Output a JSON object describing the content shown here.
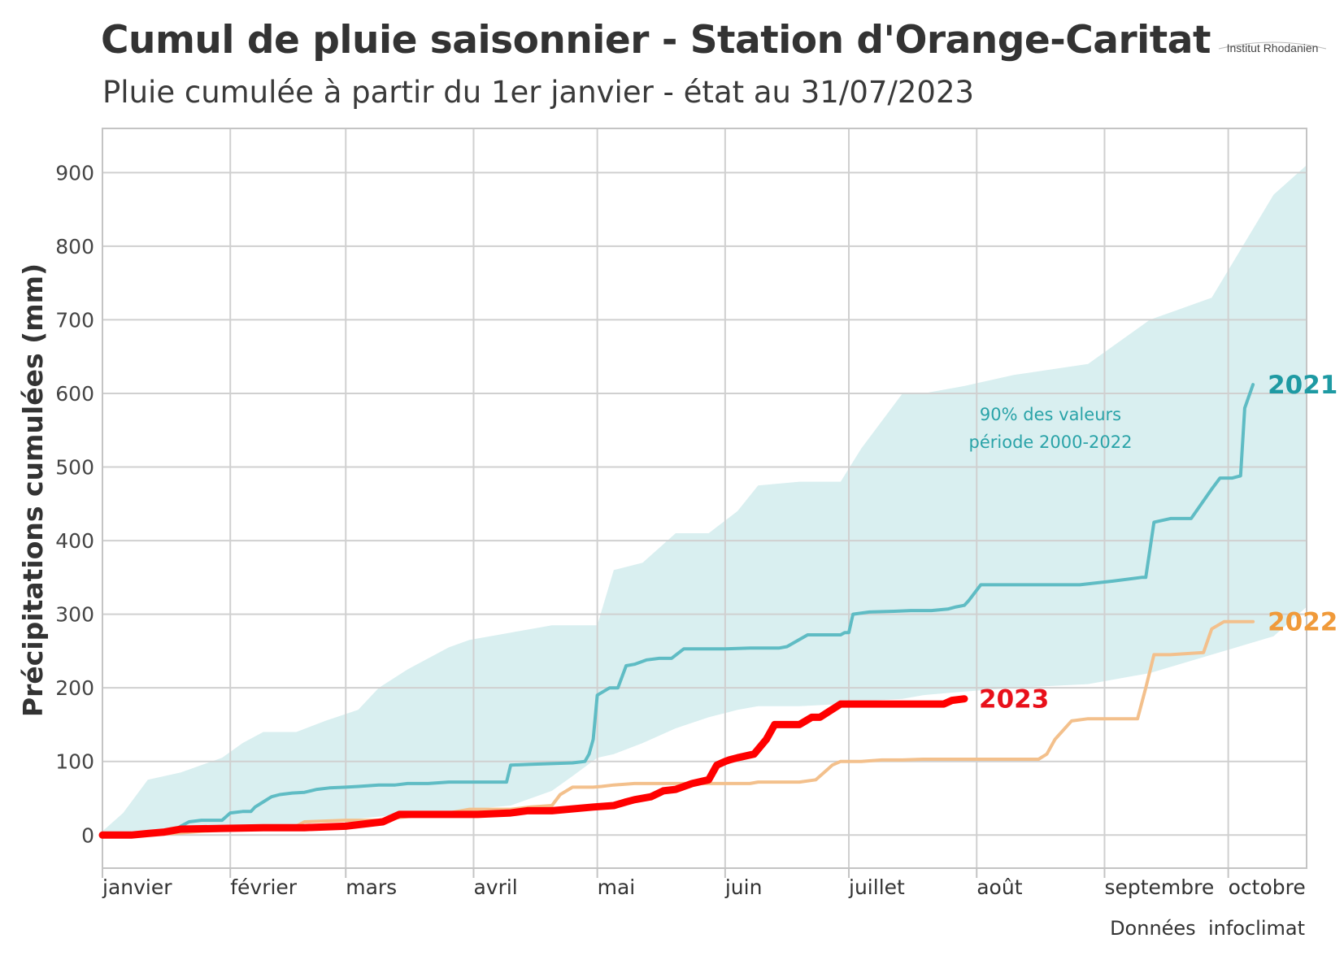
{
  "title": "Cumul de pluie saisonnier - Station d'Orange-Caritat",
  "subtitle": "Pluie cumulée à partir du 1er janvier - état au 31/07/2023",
  "logo_text": "Institut Rhodanien",
  "source": {
    "label": "Données",
    "name": "infoclimat"
  },
  "chart_data": {
    "type": "line",
    "title": "Cumul de pluie saisonnier - Station d'Orange-Caritat",
    "subtitle": "Pluie cumulée à partir du 1er janvier - état au 31/07/2023",
    "xlabel": "",
    "ylabel": "Précipitations cumulées (mm)",
    "x_unit": "day of year",
    "xlim": [
      1,
      293
    ],
    "ylim": [
      -45,
      960
    ],
    "yticks": [
      0,
      100,
      200,
      300,
      400,
      500,
      600,
      700,
      800,
      900
    ],
    "xticks": [
      {
        "day": 1,
        "label": "janvier"
      },
      {
        "day": 32,
        "label": "février"
      },
      {
        "day": 60,
        "label": "mars"
      },
      {
        "day": 91,
        "label": "avril"
      },
      {
        "day": 121,
        "label": "mai"
      },
      {
        "day": 152,
        "label": "juin"
      },
      {
        "day": 182,
        "label": "juillet"
      },
      {
        "day": 213,
        "label": "août"
      },
      {
        "day": 244,
        "label": "septembre"
      },
      {
        "day": 274,
        "label": "octobre"
      }
    ],
    "grid": true,
    "band": {
      "label_lines": [
        "90% des valeurs",
        "période 2000-2022"
      ],
      "color": "#d9eff0",
      "x": [
        1,
        6,
        12,
        20,
        30,
        35,
        40,
        48,
        55,
        63,
        68,
        75,
        85,
        90,
        100,
        110,
        115,
        121,
        125,
        132,
        140,
        148,
        155,
        160,
        170,
        180,
        185,
        195,
        200,
        210,
        222,
        240,
        255,
        270,
        285,
        293
      ],
      "upper": [
        5,
        30,
        75,
        85,
        105,
        125,
        140,
        140,
        155,
        170,
        200,
        225,
        255,
        265,
        275,
        285,
        285,
        285,
        360,
        370,
        410,
        410,
        440,
        475,
        480,
        480,
        525,
        600,
        600,
        610,
        625,
        640,
        700,
        730,
        870,
        910
      ],
      "lower": [
        0,
        0,
        0,
        2,
        5,
        8,
        10,
        14,
        18,
        22,
        25,
        28,
        30,
        35,
        40,
        60,
        80,
        105,
        110,
        125,
        145,
        160,
        170,
        175,
        175,
        178,
        182,
        185,
        190,
        195,
        200,
        205,
        220,
        245,
        270,
        310
      ]
    },
    "series": [
      {
        "name": "2021",
        "color": "#5fbcc4",
        "label_color": "#1e9aa3",
        "width": 4,
        "x": [
          1,
          12,
          18,
          20,
          22,
          25,
          30,
          32,
          35,
          37,
          38,
          40,
          42,
          44,
          47,
          50,
          53,
          56,
          60,
          63,
          68,
          72,
          75,
          80,
          85,
          92,
          99,
          100,
          105,
          115,
          118,
          119,
          120,
          121,
          124,
          126,
          128,
          130,
          133,
          136,
          139,
          142,
          147,
          152,
          158,
          165,
          167,
          172,
          176,
          180,
          181,
          182,
          183,
          187,
          193,
          197,
          202,
          206,
          208,
          210,
          211,
          214,
          220,
          225,
          230,
          232,
          238,
          246,
          253,
          254,
          256,
          260,
          262,
          263,
          265,
          270,
          272,
          273,
          275,
          277,
          278,
          280
        ],
        "y": [
          0,
          0,
          5,
          12,
          18,
          20,
          20,
          30,
          32,
          32,
          38,
          45,
          52,
          55,
          57,
          58,
          62,
          64,
          65,
          66,
          68,
          68,
          70,
          70,
          72,
          72,
          72,
          95,
          96,
          98,
          100,
          110,
          130,
          190,
          200,
          200,
          230,
          232,
          238,
          240,
          240,
          253,
          253,
          253,
          254,
          254,
          256,
          272,
          272,
          272,
          275,
          275,
          300,
          303,
          304,
          305,
          305,
          307,
          310,
          312,
          318,
          340,
          340,
          340,
          340,
          340,
          340,
          345,
          350,
          350,
          425,
          430,
          430,
          430,
          430,
          470,
          485,
          485,
          485,
          488,
          580,
          612
        ]
      },
      {
        "name": "2022",
        "color": "#f3c08c",
        "label_color": "#f09a3a",
        "width": 4,
        "x": [
          1,
          10,
          18,
          25,
          35,
          45,
          48,
          50,
          60,
          68,
          70,
          75,
          80,
          85,
          90,
          95,
          100,
          105,
          110,
          112,
          115,
          120,
          122,
          125,
          130,
          140,
          150,
          155,
          158,
          160,
          170,
          174,
          176,
          178,
          180,
          185,
          190,
          195,
          200,
          205,
          213,
          220,
          228,
          230,
          232,
          236,
          240,
          245,
          250,
          252,
          254,
          256,
          260,
          268,
          270,
          273,
          280
        ],
        "y": [
          0,
          0,
          2,
          5,
          8,
          10,
          12,
          18,
          20,
          20,
          22,
          25,
          28,
          30,
          35,
          35,
          35,
          38,
          40,
          55,
          65,
          65,
          66,
          68,
          70,
          70,
          70,
          70,
          70,
          72,
          72,
          75,
          85,
          95,
          100,
          100,
          102,
          102,
          103,
          103,
          103,
          103,
          103,
          110,
          130,
          155,
          158,
          158,
          158,
          158,
          200,
          245,
          245,
          248,
          280,
          290,
          290
        ]
      },
      {
        "name": "2023",
        "color": "#ff0000",
        "label_color": "#e8101a",
        "width": 9,
        "x": [
          1,
          8,
          12,
          16,
          20,
          30,
          40,
          50,
          60,
          69,
          73,
          78,
          85,
          92,
          100,
          104,
          110,
          120,
          125,
          128,
          130,
          134,
          137,
          140,
          144,
          148,
          150,
          152,
          153,
          155,
          159,
          162,
          164,
          170,
          173,
          175,
          180,
          183,
          190,
          200,
          205,
          207,
          210
        ],
        "y": [
          0,
          0,
          2,
          4,
          8,
          9,
          10,
          10,
          12,
          18,
          28,
          28,
          28,
          28,
          30,
          33,
          33,
          38,
          40,
          45,
          48,
          52,
          60,
          62,
          70,
          75,
          95,
          100,
          102,
          105,
          110,
          130,
          150,
          150,
          160,
          160,
          178,
          178,
          178,
          178,
          178,
          183,
          185
        ]
      }
    ]
  }
}
